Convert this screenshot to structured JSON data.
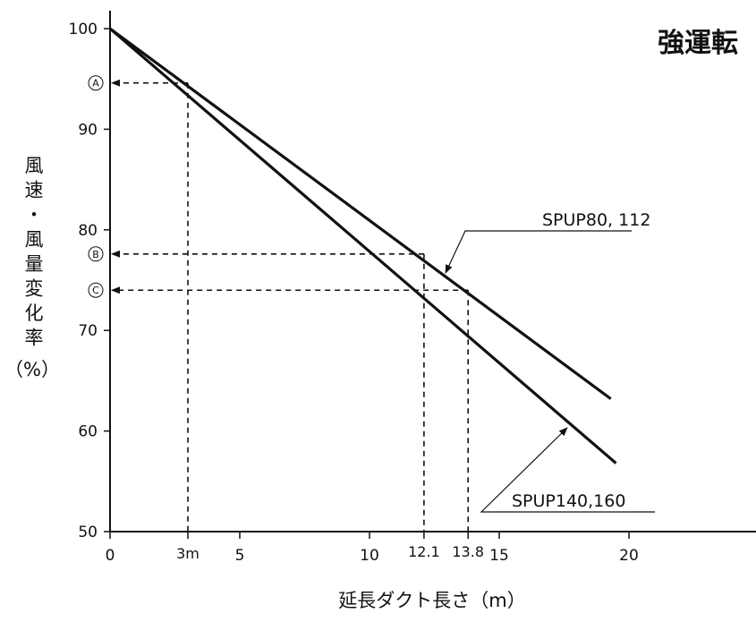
{
  "chart_data": {
    "type": "line",
    "title": "強運転",
    "xlabel": "延長ダクト長さ（m）",
    "ylabel_chars": [
      "風",
      "速",
      "・",
      "風",
      "量",
      "変",
      "化",
      "率",
      "（%）"
    ],
    "xlim": [
      0,
      25
    ],
    "ylim": [
      50,
      100
    ],
    "x_ticks": [
      {
        "value": 0,
        "label": "0"
      },
      {
        "value": 5,
        "label": "5"
      },
      {
        "value": 10,
        "label": "10"
      },
      {
        "value": 15,
        "label": "15"
      },
      {
        "value": 20,
        "label": "20"
      }
    ],
    "y_ticks": [
      {
        "value": 50,
        "label": "50"
      },
      {
        "value": 60,
        "label": "60"
      },
      {
        "value": 70,
        "label": "70"
      },
      {
        "value": 80,
        "label": "80"
      },
      {
        "value": 90,
        "label": "90"
      },
      {
        "value": 100,
        "label": "100"
      }
    ],
    "series": [
      {
        "name": "SPUP80, 112",
        "x": [
          0,
          19.3
        ],
        "y": [
          100,
          63.2
        ]
      },
      {
        "name": "SPUP140,160",
        "x": [
          0,
          19.5
        ],
        "y": [
          100,
          56.8
        ]
      }
    ],
    "reference_points": [
      {
        "marker": "A",
        "x": 3,
        "x_label": "3m",
        "y": 94.6
      },
      {
        "marker": "B",
        "x": 12.1,
        "x_label": "12.1",
        "y": 77.6
      },
      {
        "marker": "C",
        "x": 13.8,
        "x_label": "13.8",
        "y": 74.0
      }
    ],
    "grid": false,
    "legend": "none"
  }
}
